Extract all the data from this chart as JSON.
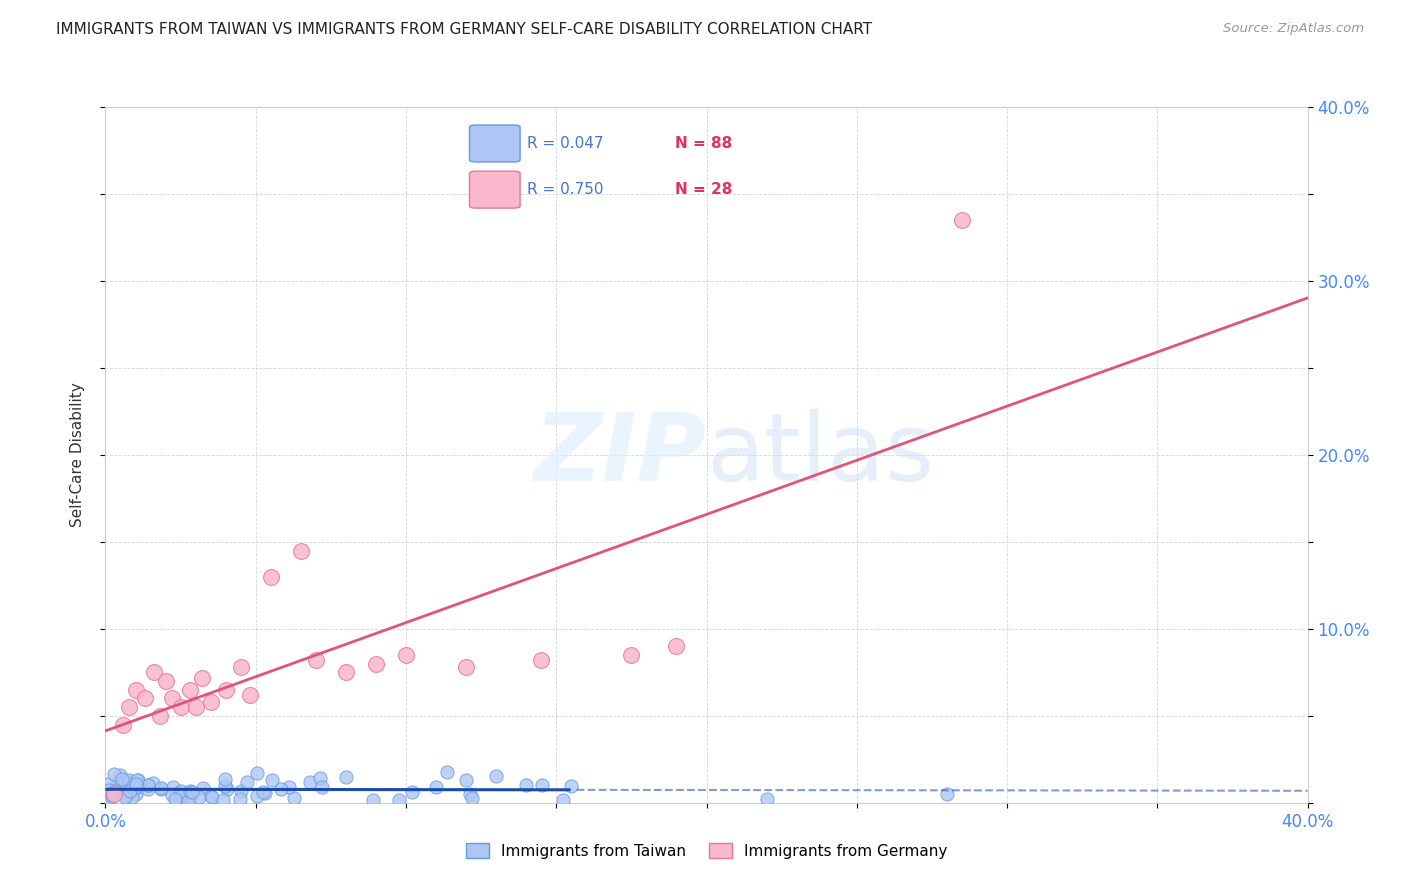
{
  "title": "IMMIGRANTS FROM TAIWAN VS IMMIGRANTS FROM GERMANY SELF-CARE DISABILITY CORRELATION CHART",
  "source": "Source: ZipAtlas.com",
  "ylabel": "Self-Care Disability",
  "xlim": [
    0.0,
    0.4
  ],
  "ylim": [
    0.0,
    0.4
  ],
  "taiwan_color": "#aec6f6",
  "taiwan_edge_color": "#6699dd",
  "germany_color": "#f9b8cc",
  "germany_edge_color": "#e87898",
  "taiwan_line_color": "#1a4aaa",
  "germany_line_color": "#e05575",
  "taiwan_R": 0.047,
  "taiwan_N": 88,
  "germany_R": 0.75,
  "germany_N": 28,
  "legend_taiwan_label": "R = 0.047   N = 88",
  "legend_germany_label": "R = 0.750   N = 28",
  "bottom_legend_taiwan": "Immigrants from Taiwan",
  "bottom_legend_germany": "Immigrants from Germany"
}
